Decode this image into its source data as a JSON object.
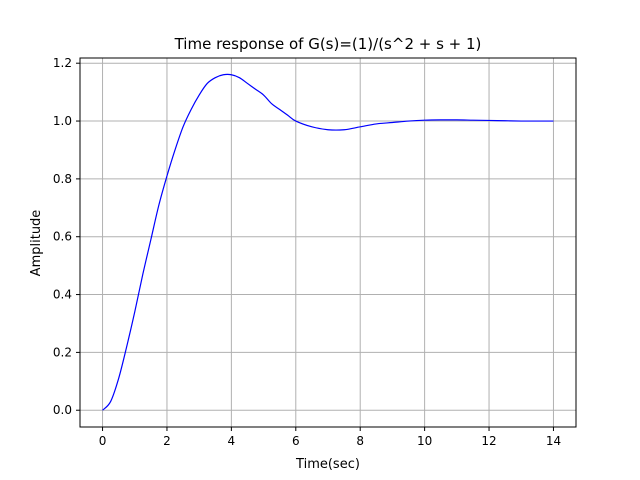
{
  "chart_data": {
    "type": "line",
    "title": "Time response of G(s)=(1)/(s^2 + s + 1)",
    "xlabel": "Time(sec)",
    "ylabel": "Amplitude",
    "xlim": [
      -0.7,
      14.7
    ],
    "ylim": [
      -0.058,
      1.218
    ],
    "grid": true,
    "x_ticks": [
      0,
      2,
      4,
      6,
      8,
      10,
      12,
      14
    ],
    "x_tick_labels": [
      "0",
      "2",
      "4",
      "6",
      "8",
      "10",
      "12",
      "14"
    ],
    "y_ticks": [
      0.0,
      0.2,
      0.4,
      0.6,
      0.8,
      1.0,
      1.2
    ],
    "y_tick_labels": [
      "0.0",
      "0.2",
      "0.4",
      "0.6",
      "0.8",
      "1.0",
      "1.2"
    ],
    "series": [
      {
        "color": "#0000ff",
        "x": [
          0,
          0.25,
          0.5,
          0.75,
          1.0,
          1.25,
          1.5,
          1.75,
          2.0,
          2.25,
          2.5,
          2.75,
          3.0,
          3.25,
          3.5,
          3.75,
          4.0,
          4.25,
          4.5,
          4.75,
          5.0,
          5.25,
          5.5,
          5.75,
          6.0,
          6.5,
          7.0,
          7.5,
          8.0,
          8.5,
          9.0,
          9.5,
          10.0,
          10.5,
          11.0,
          11.5,
          12.0,
          12.5,
          13.0,
          13.5,
          14.0
        ],
        "y": [
          0.0,
          0.03,
          0.11,
          0.22,
          0.34,
          0.47,
          0.59,
          0.71,
          0.81,
          0.9,
          0.98,
          1.04,
          1.09,
          1.13,
          1.15,
          1.16,
          1.16,
          1.15,
          1.13,
          1.11,
          1.09,
          1.06,
          1.04,
          1.02,
          1.0,
          0.98,
          0.97,
          0.97,
          0.98,
          0.99,
          0.995,
          1.0,
          1.003,
          1.004,
          1.004,
          1.003,
          1.002,
          1.001,
          1.0,
          1.0,
          1.0
        ]
      }
    ]
  }
}
